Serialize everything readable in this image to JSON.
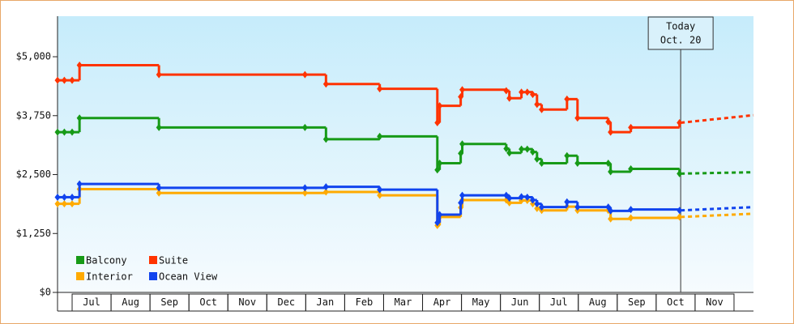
{
  "chart_data": {
    "type": "line",
    "step": true,
    "x": [
      -0.375,
      -0.2,
      0,
      0.19,
      2.23,
      5.98,
      6.52,
      7.9,
      9.38,
      9.44,
      9.98,
      10.02,
      11.15,
      11.23,
      11.54,
      11.69,
      11.83,
      11.94,
      12.06,
      12.71,
      12.98,
      13.77,
      13.83,
      14.35,
      15.6,
      17.5
    ],
    "series": [
      {
        "name": "Balcony",
        "color": "#179a17",
        "values": [
          3400,
          3400,
          3400,
          3700,
          3500,
          3500,
          3250,
          3310,
          2600,
          2740,
          2950,
          3150,
          3050,
          2960,
          3040,
          3040,
          2980,
          2830,
          2740,
          2900,
          2740,
          2740,
          2560,
          2620,
          2520,
          2550
        ]
      },
      {
        "name": "Suite",
        "color": "#ff3300",
        "values": [
          4500,
          4500,
          4500,
          4820,
          4620,
          4620,
          4420,
          4320,
          3600,
          3960,
          4150,
          4300,
          4280,
          4120,
          4250,
          4250,
          4200,
          3990,
          3880,
          4100,
          3700,
          3620,
          3400,
          3500,
          3600,
          3760
        ]
      },
      {
        "name": "Interior",
        "color": "#ffaa00",
        "values": [
          1880,
          1880,
          1880,
          2190,
          2110,
          2110,
          2130,
          2060,
          1420,
          1600,
          1800,
          1960,
          1960,
          1900,
          1950,
          1950,
          1880,
          1780,
          1740,
          1820,
          1740,
          1740,
          1560,
          1580,
          1600,
          1670
        ]
      },
      {
        "name": "Ocean View",
        "color": "#1144ee",
        "values": [
          2020,
          2020,
          2020,
          2300,
          2220,
          2220,
          2240,
          2180,
          1480,
          1650,
          1900,
          2060,
          2060,
          2000,
          2030,
          2020,
          1960,
          1880,
          1810,
          1920,
          1810,
          1810,
          1730,
          1760,
          1740,
          1810
        ]
      }
    ],
    "xlim": [
      -0.375,
      17.5
    ],
    "xticks": [
      {
        "value": 0.5,
        "label": "Jul"
      },
      {
        "value": 1.5,
        "label": "Aug"
      },
      {
        "value": 2.5,
        "label": "Sep"
      },
      {
        "value": 3.5,
        "label": "Oct"
      },
      {
        "value": 4.5,
        "label": "Nov"
      },
      {
        "value": 5.5,
        "label": "Dec"
      },
      {
        "value": 6.5,
        "label": "Jan"
      },
      {
        "value": 7.5,
        "label": "Feb"
      },
      {
        "value": 8.5,
        "label": "Mar"
      },
      {
        "value": 9.5,
        "label": "Apr"
      },
      {
        "value": 10.5,
        "label": "May"
      },
      {
        "value": 11.5,
        "label": "Jun"
      },
      {
        "value": 12.5,
        "label": "Jul"
      },
      {
        "value": 13.5,
        "label": "Aug"
      },
      {
        "value": 14.5,
        "label": "Sep"
      },
      {
        "value": 15.5,
        "label": "Oct"
      },
      {
        "value": 16.5,
        "label": "Nov"
      }
    ],
    "ylim": [
      0,
      5860
    ],
    "yticks": [
      {
        "value": 0,
        "label": "$0"
      },
      {
        "value": 1250,
        "label": "$1,250"
      },
      {
        "value": 2500,
        "label": "$2,500"
      },
      {
        "value": 3750,
        "label": "$3,750"
      },
      {
        "value": 5000,
        "label": "$5,000"
      }
    ],
    "annotation": {
      "lines": [
        "Today",
        "Oct. 20"
      ],
      "x": 15.63
    },
    "legend": "bottom-left"
  }
}
